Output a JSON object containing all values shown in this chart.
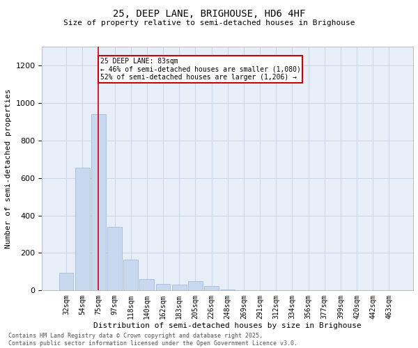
{
  "title": "25, DEEP LANE, BRIGHOUSE, HD6 4HF",
  "subtitle": "Size of property relative to semi-detached houses in Brighouse",
  "xlabel": "Distribution of semi-detached houses by size in Brighouse",
  "ylabel": "Number of semi-detached properties",
  "footnote": "Contains HM Land Registry data © Crown copyright and database right 2025.\nContains public sector information licensed under the Open Government Licence v3.0.",
  "bar_color": "#c8d8ee",
  "bar_edge_color": "#9ab4d4",
  "grid_color": "#c8d4e8",
  "background_color": "#e8eef8",
  "categories": [
    "32sqm",
    "54sqm",
    "75sqm",
    "97sqm",
    "118sqm",
    "140sqm",
    "162sqm",
    "183sqm",
    "205sqm",
    "226sqm",
    "248sqm",
    "269sqm",
    "291sqm",
    "312sqm",
    "334sqm",
    "356sqm",
    "377sqm",
    "399sqm",
    "420sqm",
    "442sqm",
    "463sqm"
  ],
  "values": [
    95,
    655,
    940,
    340,
    165,
    60,
    35,
    30,
    50,
    25,
    5,
    0,
    0,
    0,
    0,
    0,
    0,
    0,
    0,
    0,
    0
  ],
  "ylim": [
    0,
    1300
  ],
  "yticks": [
    0,
    200,
    400,
    600,
    800,
    1000,
    1200
  ],
  "property_bar_index": 2,
  "red_line_x": 2.0,
  "red_line_color": "#cc0000",
  "annotation_text": "25 DEEP LANE: 83sqm\n← 46% of semi-detached houses are smaller (1,080)\n52% of semi-detached houses are larger (1,206) →",
  "annotation_box_color": "#ffffff",
  "annotation_box_edge_color": "#cc0000",
  "title_fontsize": 10,
  "subtitle_fontsize": 8,
  "ylabel_fontsize": 8,
  "xlabel_fontsize": 8,
  "tick_fontsize": 7,
  "footnote_fontsize": 6
}
